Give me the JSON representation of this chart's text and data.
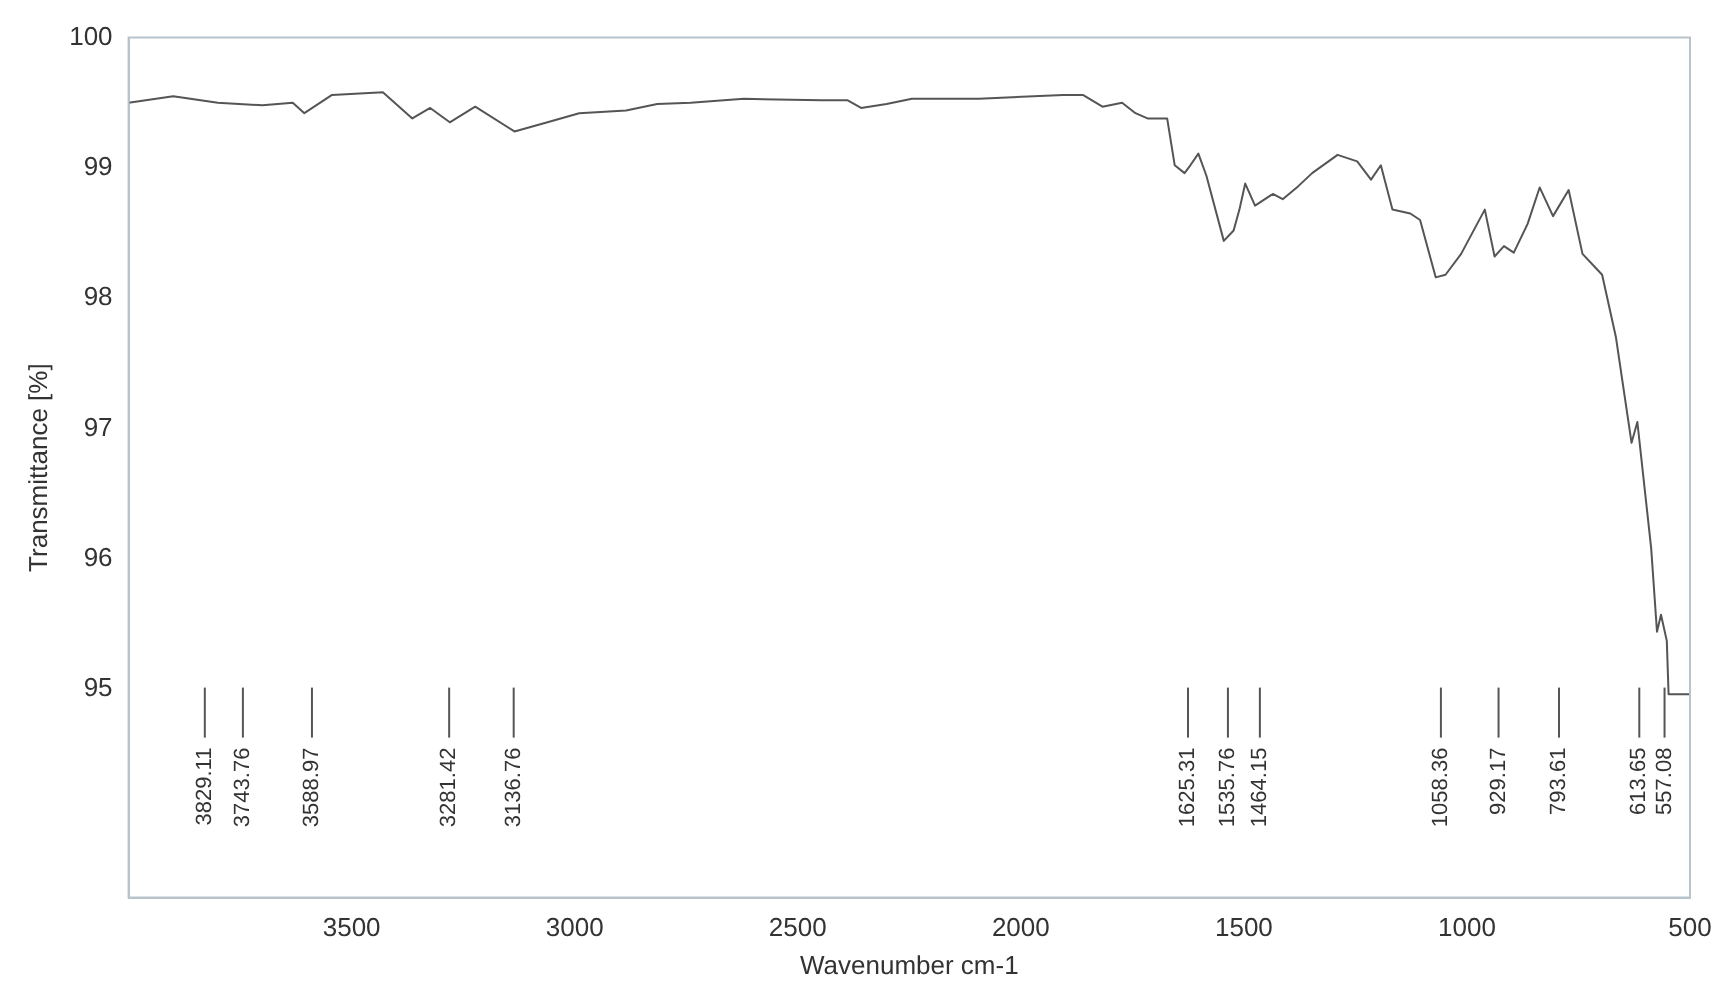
{
  "chart_data": {
    "type": "line",
    "xlabel": "Wavenumber cm-1",
    "ylabel": "Transmittance [%]",
    "xlim": [
      4000,
      500
    ],
    "ylim": [
      93.4,
      100
    ],
    "xticks": [
      3500,
      3000,
      2500,
      2000,
      1500,
      1000,
      500
    ],
    "yticks": [
      95,
      96,
      97,
      98,
      99,
      100
    ],
    "grid": false,
    "legend": false,
    "x": [
      4000,
      3900,
      3800,
      3700,
      3632,
      3606,
      3544,
      3430,
      3364,
      3324,
      3280,
      3223,
      3135,
      3061,
      2990,
      2885,
      2815,
      2740,
      2621,
      2446,
      2389,
      2358,
      2301,
      2244,
      2094,
      1905,
      1861,
      1817,
      1773,
      1743,
      1716,
      1672,
      1655,
      1633,
      1620,
      1602,
      1584,
      1545,
      1523,
      1510,
      1497,
      1475,
      1435,
      1413,
      1378,
      1347,
      1290,
      1246,
      1215,
      1193,
      1167,
      1127,
      1105,
      1070,
      1048,
      1013,
      960,
      938,
      917,
      895,
      864,
      837,
      807,
      772,
      741,
      697,
      666,
      631,
      618,
      587,
      574,
      565,
      552,
      548,
      517,
      500
    ],
    "series": [
      {
        "color": "#555555",
        "values": [
          99.5,
          99.55,
          99.5,
          99.48,
          99.5,
          99.42,
          99.56,
          99.58,
          99.38,
          99.46,
          99.35,
          99.47,
          99.28,
          99.35,
          99.42,
          99.44,
          99.49,
          99.5,
          99.53,
          99.52,
          99.52,
          99.46,
          99.49,
          99.53,
          99.53,
          99.56,
          99.56,
          99.47,
          99.5,
          99.42,
          99.38,
          99.38,
          99.02,
          98.96,
          99.02,
          99.11,
          98.94,
          98.44,
          98.52,
          98.68,
          98.88,
          98.71,
          98.8,
          98.76,
          98.86,
          98.96,
          99.1,
          99.05,
          98.91,
          99.02,
          98.68,
          98.65,
          98.6,
          98.16,
          98.18,
          98.34,
          98.68,
          98.32,
          98.4,
          98.35,
          98.57,
          98.85,
          98.63,
          98.83,
          98.34,
          98.18,
          97.7,
          96.89,
          97.05,
          96.08,
          95.44,
          95.57,
          95.37,
          94.96,
          94.96,
          94.96
        ]
      }
    ],
    "ref_lines": [
      {
        "axis": "x",
        "value": 3829.11,
        "label": "3829.11"
      },
      {
        "axis": "x",
        "value": 3743.76,
        "label": "3743.76"
      },
      {
        "axis": "x",
        "value": 3588.97,
        "label": "3588.97"
      },
      {
        "axis": "x",
        "value": 3281.42,
        "label": "3281.42"
      },
      {
        "axis": "x",
        "value": 3136.76,
        "label": "3136.76"
      },
      {
        "axis": "x",
        "value": 1625.31,
        "label": "1625.31"
      },
      {
        "axis": "x",
        "value": 1535.76,
        "label": "1535.76"
      },
      {
        "axis": "x",
        "value": 1464.15,
        "label": "1464.15"
      },
      {
        "axis": "x",
        "value": 1058.36,
        "label": "1058.36"
      },
      {
        "axis": "x",
        "value": 929.17,
        "label": "929.17"
      },
      {
        "axis": "x",
        "value": 793.61,
        "label": "793.61"
      },
      {
        "axis": "x",
        "value": 613.65,
        "label": "613.65"
      },
      {
        "axis": "x",
        "value": 557.08,
        "label": "557.08"
      }
    ]
  }
}
